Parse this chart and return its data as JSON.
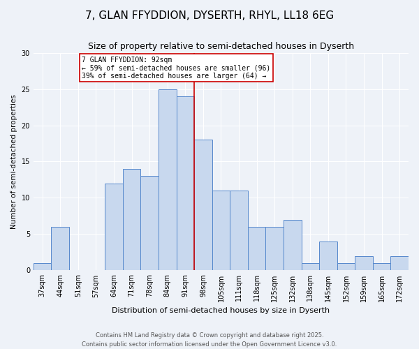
{
  "title1": "7, GLAN FFYDDION, DYSERTH, RHYL, LL18 6EG",
  "title2": "Size of property relative to semi-detached houses in Dyserth",
  "xlabel": "Distribution of semi-detached houses by size in Dyserth",
  "ylabel": "Number of semi-detached properties",
  "categories": [
    "37sqm",
    "44sqm",
    "51sqm",
    "57sqm",
    "64sqm",
    "71sqm",
    "78sqm",
    "84sqm",
    "91sqm",
    "98sqm",
    "105sqm",
    "111sqm",
    "118sqm",
    "125sqm",
    "132sqm",
    "138sqm",
    "145sqm",
    "152sqm",
    "159sqm",
    "165sqm",
    "172sqm"
  ],
  "values": [
    1,
    6,
    0,
    0,
    12,
    14,
    13,
    25,
    24,
    18,
    11,
    11,
    6,
    6,
    7,
    1,
    4,
    1,
    2,
    1,
    2
  ],
  "bar_color": "#c8d8ee",
  "bar_edge_color": "#5588cc",
  "bar_width": 1.0,
  "vline_pos": 8.5,
  "vline_color": "#cc0000",
  "annotation_title": "7 GLAN FFYDDION: 92sqm",
  "annotation_line1": "← 59% of semi-detached houses are smaller (96)",
  "annotation_line2": "39% of semi-detached houses are larger (64) →",
  "annotation_box_color": "#ffffff",
  "annotation_box_edge": "#cc0000",
  "ylim": [
    0,
    30
  ],
  "yticks": [
    0,
    5,
    10,
    15,
    20,
    25,
    30
  ],
  "footer1": "Contains HM Land Registry data © Crown copyright and database right 2025.",
  "footer2": "Contains public sector information licensed under the Open Government Licence v3.0.",
  "bg_color": "#eef2f8",
  "grid_color": "#ffffff",
  "title1_fontsize": 11,
  "title2_fontsize": 9,
  "xlabel_fontsize": 8,
  "ylabel_fontsize": 7.5,
  "tick_fontsize": 7,
  "footer_fontsize": 6,
  "annot_fontsize": 7
}
